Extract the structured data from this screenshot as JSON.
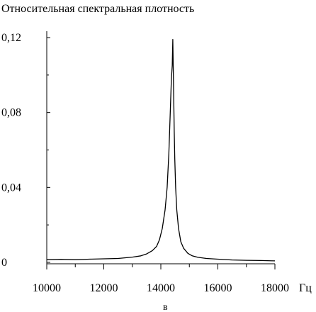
{
  "chart_data": {
    "type": "line",
    "title": "Относительная спектральная плотность",
    "xlabel": "Гц",
    "ylabel": "",
    "caption": "в",
    "xlim": [
      10000,
      18000
    ],
    "ylim": [
      0,
      0.12
    ],
    "x_ticks": [
      {
        "value": 10000,
        "label": "10000"
      },
      {
        "value": 12000,
        "label": "12000"
      },
      {
        "value": 14000,
        "label": "14000"
      },
      {
        "value": 16000,
        "label": "16000"
      },
      {
        "value": 18000,
        "label": "18000"
      }
    ],
    "y_ticks": [
      {
        "value": 0,
        "label": "0"
      },
      {
        "value": 0.04,
        "label": "0,04"
      },
      {
        "value": 0.08,
        "label": "0,08"
      },
      {
        "value": 0.12,
        "label": "0,12"
      }
    ],
    "grid": false,
    "series": [
      {
        "color": "#000000",
        "x": [
          10000,
          10500,
          11000,
          11500,
          12000,
          12500,
          13000,
          13300,
          13500,
          13700,
          13850,
          13950,
          14050,
          14150,
          14220,
          14280,
          14330,
          14370,
          14400,
          14420,
          14440,
          14455,
          14470,
          14490,
          14520,
          14560,
          14620,
          14700,
          14800,
          14950,
          15100,
          15300,
          15600,
          16000,
          16500,
          17000,
          17500,
          18000
        ],
        "y": [
          0.0014,
          0.0016,
          0.0014,
          0.0017,
          0.0019,
          0.0021,
          0.0028,
          0.0035,
          0.0045,
          0.0062,
          0.0085,
          0.012,
          0.018,
          0.028,
          0.04,
          0.058,
          0.08,
          0.098,
          0.105,
          0.119,
          0.1,
          0.085,
          0.07,
          0.055,
          0.04,
          0.028,
          0.018,
          0.011,
          0.0075,
          0.0048,
          0.0035,
          0.0027,
          0.0021,
          0.0017,
          0.0013,
          0.0011,
          0.001,
          0.0008
        ]
      }
    ]
  }
}
